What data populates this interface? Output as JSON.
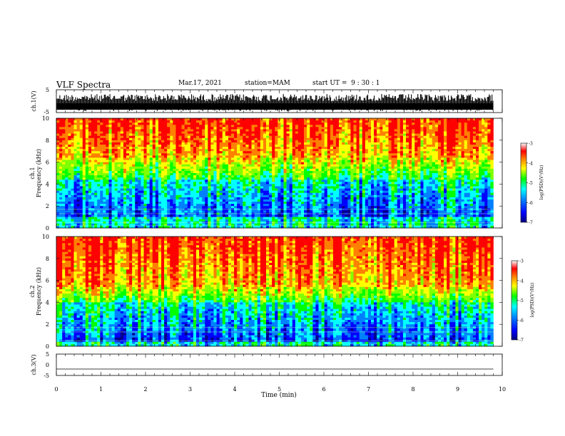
{
  "header": {
    "title": "VLF Spectra",
    "date": "Mar.17, 2021",
    "station": "station=MAM",
    "start": "start UT =  9 : 30 : 1"
  },
  "chart_data": {
    "type": "heatmap",
    "xlabel": "Time (min)",
    "xlim": [
      0,
      10
    ],
    "xticks": [
      "0",
      "1",
      "2",
      "3",
      "4",
      "5",
      "6",
      "7",
      "8",
      "9",
      "10"
    ],
    "data_end_min": 9.8,
    "panels": [
      {
        "id": "ch1-waveform",
        "type": "line",
        "ylabel": "ch.1(V)",
        "ylim": [
          -5,
          5
        ],
        "yticks": [
          "5",
          "-5"
        ],
        "style": "dense saturated waveform"
      },
      {
        "id": "ch1-spectrogram",
        "type": "heatmap",
        "ylabel_line1": "ch.1",
        "ylabel_line2": "Frequency (kHz)",
        "ylim": [
          0,
          10
        ],
        "yticks": [
          "0",
          "2",
          "4",
          "6",
          "8",
          "10"
        ],
        "band_kHz": {
          "low_level": [
            1.0,
            4.5
          ],
          "mid_level": [
            4.5,
            6.5
          ],
          "high_level": [
            6.5,
            10
          ]
        },
        "colorbar": {
          "label": "log(PSD)(V²/Hz)",
          "range": [
            -7,
            -3
          ],
          "ticks": [
            "-3",
            "-4",
            "-5",
            "-6",
            "-7"
          ]
        }
      },
      {
        "id": "ch2-spectrogram",
        "type": "heatmap",
        "ylabel_line1": "ch.2",
        "ylabel_line2": "Frequency (kHz)",
        "ylim": [
          0,
          10
        ],
        "yticks": [
          "0",
          "2",
          "4",
          "6",
          "8",
          "10"
        ],
        "band_kHz": {
          "low_level": [
            0.5,
            4.0
          ],
          "mid_level": [
            4.0,
            5.5
          ],
          "high_level": [
            5.5,
            10
          ]
        },
        "colorbar": {
          "label": "log(PSD)(V²/Hz)",
          "range": [
            -7,
            -3
          ],
          "ticks": [
            "-3",
            "-4",
            "-5",
            "-6",
            "-7"
          ]
        }
      },
      {
        "id": "ch3-waveform",
        "type": "line",
        "ylabel": "ch.3(V)",
        "ylim": [
          -5,
          5
        ],
        "yticks": [
          "5",
          "0",
          "-5"
        ],
        "constant_value": -2
      }
    ],
    "colormap": [
      "#00008b",
      "#0000ff",
      "#0080ff",
      "#00ffff",
      "#00ff00",
      "#80ff00",
      "#ffff00",
      "#ff8000",
      "#ff0000",
      "#ffffff"
    ]
  }
}
